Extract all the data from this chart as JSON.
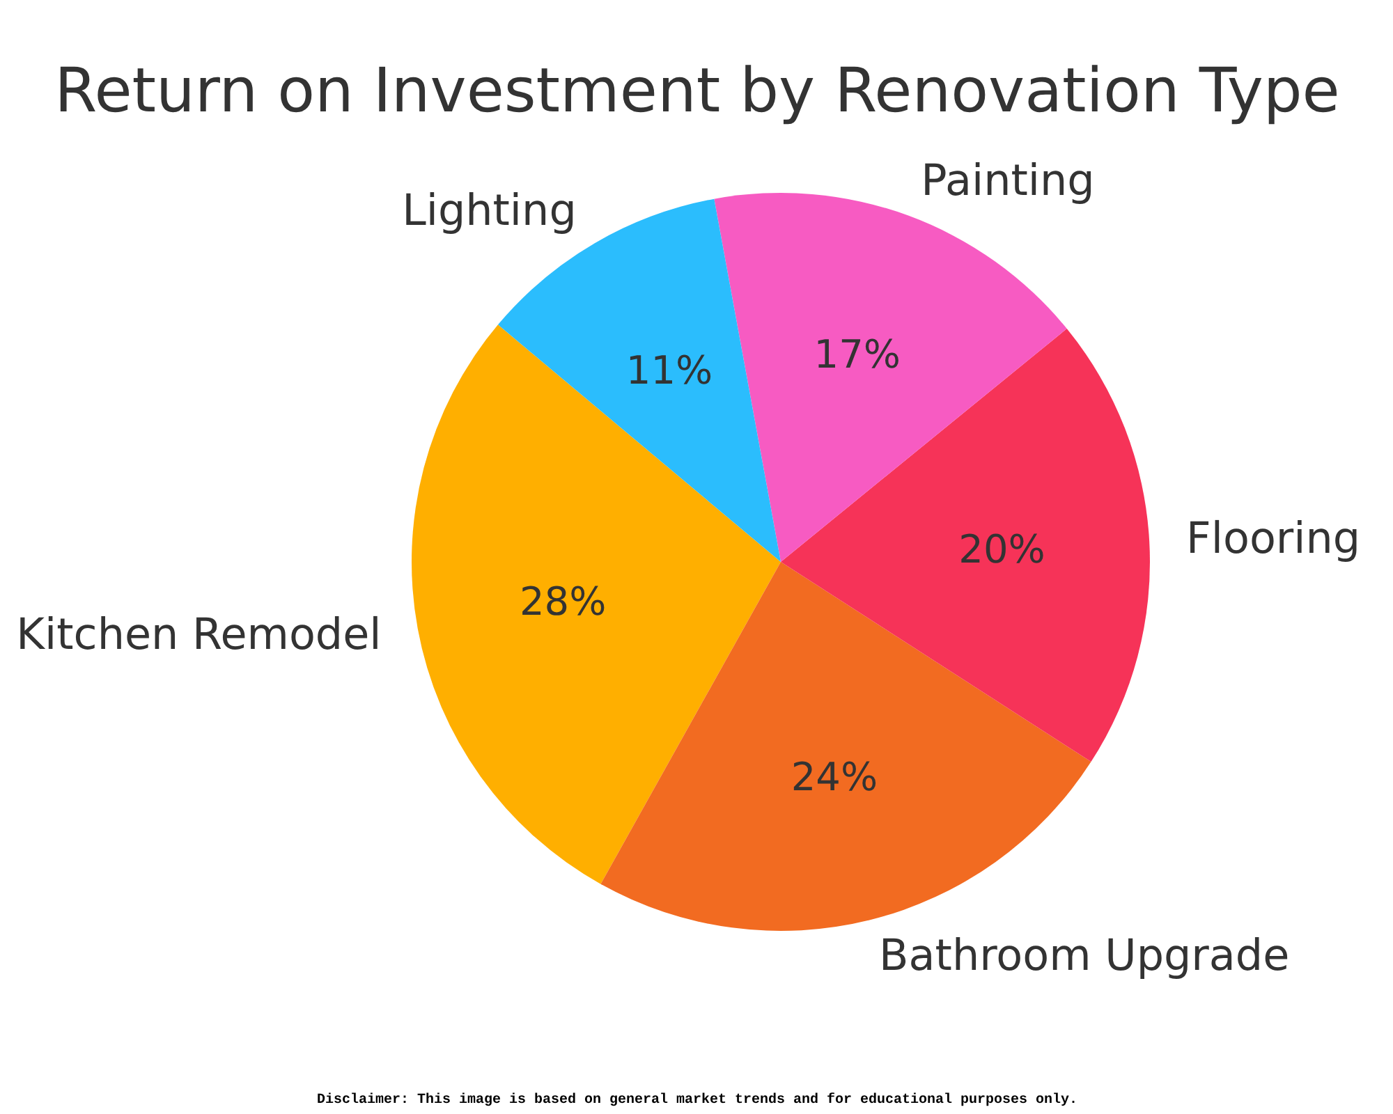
{
  "chart_data": {
    "type": "pie",
    "title": "Return on Investment by Renovation Type",
    "categories": [
      "Kitchen Remodel",
      "Bathroom Upgrade",
      "Flooring",
      "Painting",
      "Lighting"
    ],
    "values": [
      28,
      24,
      20,
      17,
      11
    ],
    "colors": [
      "#ffaf00",
      "#f26b21",
      "#f63358",
      "#f75bc2",
      "#2bbdfd"
    ],
    "value_labels": [
      "28%",
      "24%",
      "20%",
      "17%",
      "11%"
    ],
    "annotations": [
      "Disclaimer: This image is based on general market trends and for educational purposes only."
    ]
  }
}
